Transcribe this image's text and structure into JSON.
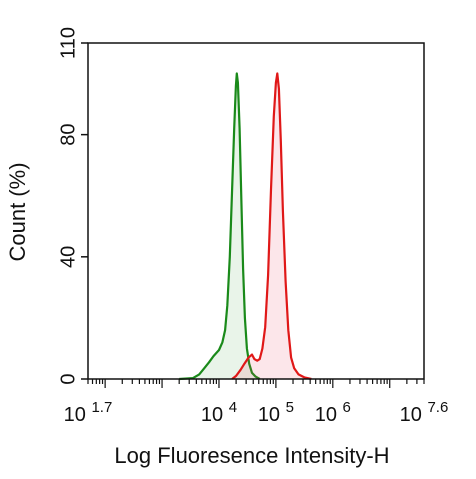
{
  "chart_data": {
    "type": "area",
    "xlabel": "Log Fluoresence Intensity-H",
    "ylabel": "Count  (%)",
    "x_scale": "log",
    "xlim": [
      50,
      40000000
    ],
    "ylim": [
      0,
      110
    ],
    "x_ticks": [
      {
        "value": 50,
        "base": "10",
        "exp": "1.7"
      },
      {
        "value": 10000,
        "base": "10",
        "exp": "4"
      },
      {
        "value": 100000,
        "base": "10",
        "exp": "5"
      },
      {
        "value": 1000000,
        "base": "10",
        "exp": "6"
      },
      {
        "value": 40000000,
        "base": "10",
        "exp": "7.6"
      }
    ],
    "y_ticks": [
      {
        "value": 0,
        "label": "0"
      },
      {
        "value": 40,
        "label": "40"
      },
      {
        "value": 80,
        "label": "80"
      },
      {
        "value": 110,
        "label": "110"
      }
    ],
    "grid": false,
    "legend": "none",
    "series": [
      {
        "color": "#1a8a1a",
        "fill": "rgba(40,150,40,0.10)",
        "points": [
          [
            2000,
            0
          ],
          [
            3500,
            0.3
          ],
          [
            4500,
            1.5
          ],
          [
            5500,
            3.5
          ],
          [
            6700,
            5.5
          ],
          [
            8000,
            7.5
          ],
          [
            10000,
            9.5
          ],
          [
            11500,
            12
          ],
          [
            12800,
            16
          ],
          [
            14000,
            24
          ],
          [
            15500,
            40
          ],
          [
            17000,
            62
          ],
          [
            18500,
            82
          ],
          [
            19800,
            96
          ],
          [
            20600,
            100
          ],
          [
            21500,
            97
          ],
          [
            23000,
            82
          ],
          [
            24800,
            58
          ],
          [
            26500,
            36
          ],
          [
            28500,
            20
          ],
          [
            31000,
            10
          ],
          [
            34000,
            5
          ],
          [
            38000,
            2
          ],
          [
            44000,
            0.8
          ],
          [
            52000,
            0
          ]
        ]
      },
      {
        "color": "#e01818",
        "fill": "rgba(230,60,90,0.13)",
        "points": [
          [
            17000,
            0
          ],
          [
            20000,
            1
          ],
          [
            24000,
            3
          ],
          [
            28000,
            5
          ],
          [
            33000,
            7
          ],
          [
            38000,
            8
          ],
          [
            42000,
            6.5
          ],
          [
            47000,
            6
          ],
          [
            52000,
            6.5
          ],
          [
            58000,
            10
          ],
          [
            65000,
            17
          ],
          [
            73000,
            34
          ],
          [
            82000,
            62
          ],
          [
            92000,
            86
          ],
          [
            100000,
            97
          ],
          [
            106000,
            100
          ],
          [
            113000,
            95
          ],
          [
            122000,
            78
          ],
          [
            133000,
            55
          ],
          [
            148000,
            32
          ],
          [
            165000,
            16
          ],
          [
            185000,
            7
          ],
          [
            210000,
            3.5
          ],
          [
            250000,
            1.5
          ],
          [
            320000,
            0.5
          ],
          [
            420000,
            0
          ]
        ]
      }
    ]
  }
}
